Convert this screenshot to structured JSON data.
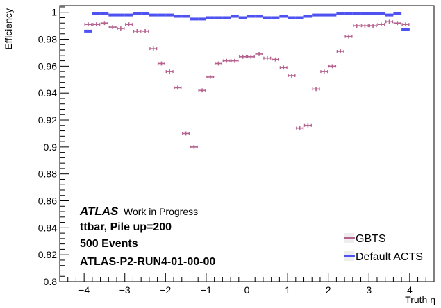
{
  "chart_data": {
    "type": "scatter",
    "title": "",
    "xlabel": "Truth η",
    "ylabel": "Efficiency",
    "xlim": [
      -4.6,
      4.6
    ],
    "ylim": [
      0.8,
      1.005
    ],
    "x_ticks": [
      -4,
      -3,
      -2,
      -1,
      0,
      1,
      2,
      3,
      4
    ],
    "y_ticks": [
      0.8,
      0.82,
      0.84,
      0.86,
      0.88,
      0.9,
      0.92,
      0.94,
      0.96,
      0.98,
      1
    ],
    "x_tick_labels": [
      "−4",
      "−3",
      "−2",
      "−1",
      "0",
      "1",
      "2",
      "3",
      "4"
    ],
    "y_tick_labels": [
      "0.8",
      "0.82",
      "0.84",
      "0.86",
      "0.88",
      "0.9",
      "0.92",
      "0.94",
      "0.96",
      "0.98",
      "1"
    ],
    "grid": false,
    "legend_position": "bottom-right",
    "annotations": {
      "atlas": "ATLAS",
      "status": "Work in Progress",
      "line1": "ttbar, Pile up=200",
      "line2": "500 Events",
      "line3": "ATLAS-P2-RUN4-01-00-00"
    },
    "bin_half_width": 0.1,
    "series": [
      {
        "name": "GBTS",
        "color": "#b5628f",
        "x": [
          -3.9,
          -3.7,
          -3.5,
          -3.3,
          -3.1,
          -2.9,
          -2.7,
          -2.5,
          -2.3,
          -2.1,
          -1.9,
          -1.7,
          -1.5,
          -1.3,
          -1.1,
          -0.9,
          -0.7,
          -0.5,
          -0.3,
          -0.1,
          0.1,
          0.3,
          0.5,
          0.7,
          0.9,
          1.1,
          1.3,
          1.5,
          1.7,
          1.9,
          2.1,
          2.3,
          2.5,
          2.7,
          2.9,
          3.1,
          3.3,
          3.5,
          3.7,
          3.9
        ],
        "y": [
          0.991,
          0.991,
          0.992,
          0.989,
          0.988,
          0.991,
          0.986,
          0.986,
          0.973,
          0.962,
          0.956,
          0.944,
          0.91,
          0.9,
          0.942,
          0.952,
          0.962,
          0.964,
          0.964,
          0.967,
          0.967,
          0.969,
          0.966,
          0.965,
          0.959,
          0.953,
          0.914,
          0.916,
          0.943,
          0.956,
          0.96,
          0.971,
          0.982,
          0.99,
          0.99,
          0.99,
          0.991,
          0.993,
          0.992,
          0.991
        ],
        "yerr": 0.0015
      },
      {
        "name": "Default ACTS",
        "color": "#4d52f0",
        "x": [
          -3.9,
          -3.7,
          -3.5,
          -3.3,
          -3.1,
          -2.9,
          -2.7,
          -2.5,
          -2.3,
          -2.1,
          -1.9,
          -1.7,
          -1.5,
          -1.3,
          -1.1,
          -0.9,
          -0.7,
          -0.5,
          -0.3,
          -0.1,
          0.1,
          0.3,
          0.5,
          0.7,
          0.9,
          1.1,
          1.3,
          1.5,
          1.7,
          1.9,
          2.1,
          2.3,
          2.5,
          2.7,
          2.9,
          3.1,
          3.3,
          3.5,
          3.7,
          3.9
        ],
        "y": [
          0.986,
          0.999,
          0.999,
          0.998,
          0.998,
          0.998,
          0.999,
          0.999,
          0.998,
          0.998,
          0.998,
          0.997,
          0.997,
          0.995,
          0.995,
          0.996,
          0.996,
          0.996,
          0.997,
          0.996,
          0.997,
          0.997,
          0.996,
          0.996,
          0.997,
          0.996,
          0.996,
          0.997,
          0.998,
          0.998,
          0.998,
          0.999,
          0.999,
          0.999,
          0.999,
          0.999,
          0.999,
          0.998,
          0.999,
          0.987
        ],
        "yerr": 0.0008
      }
    ]
  }
}
